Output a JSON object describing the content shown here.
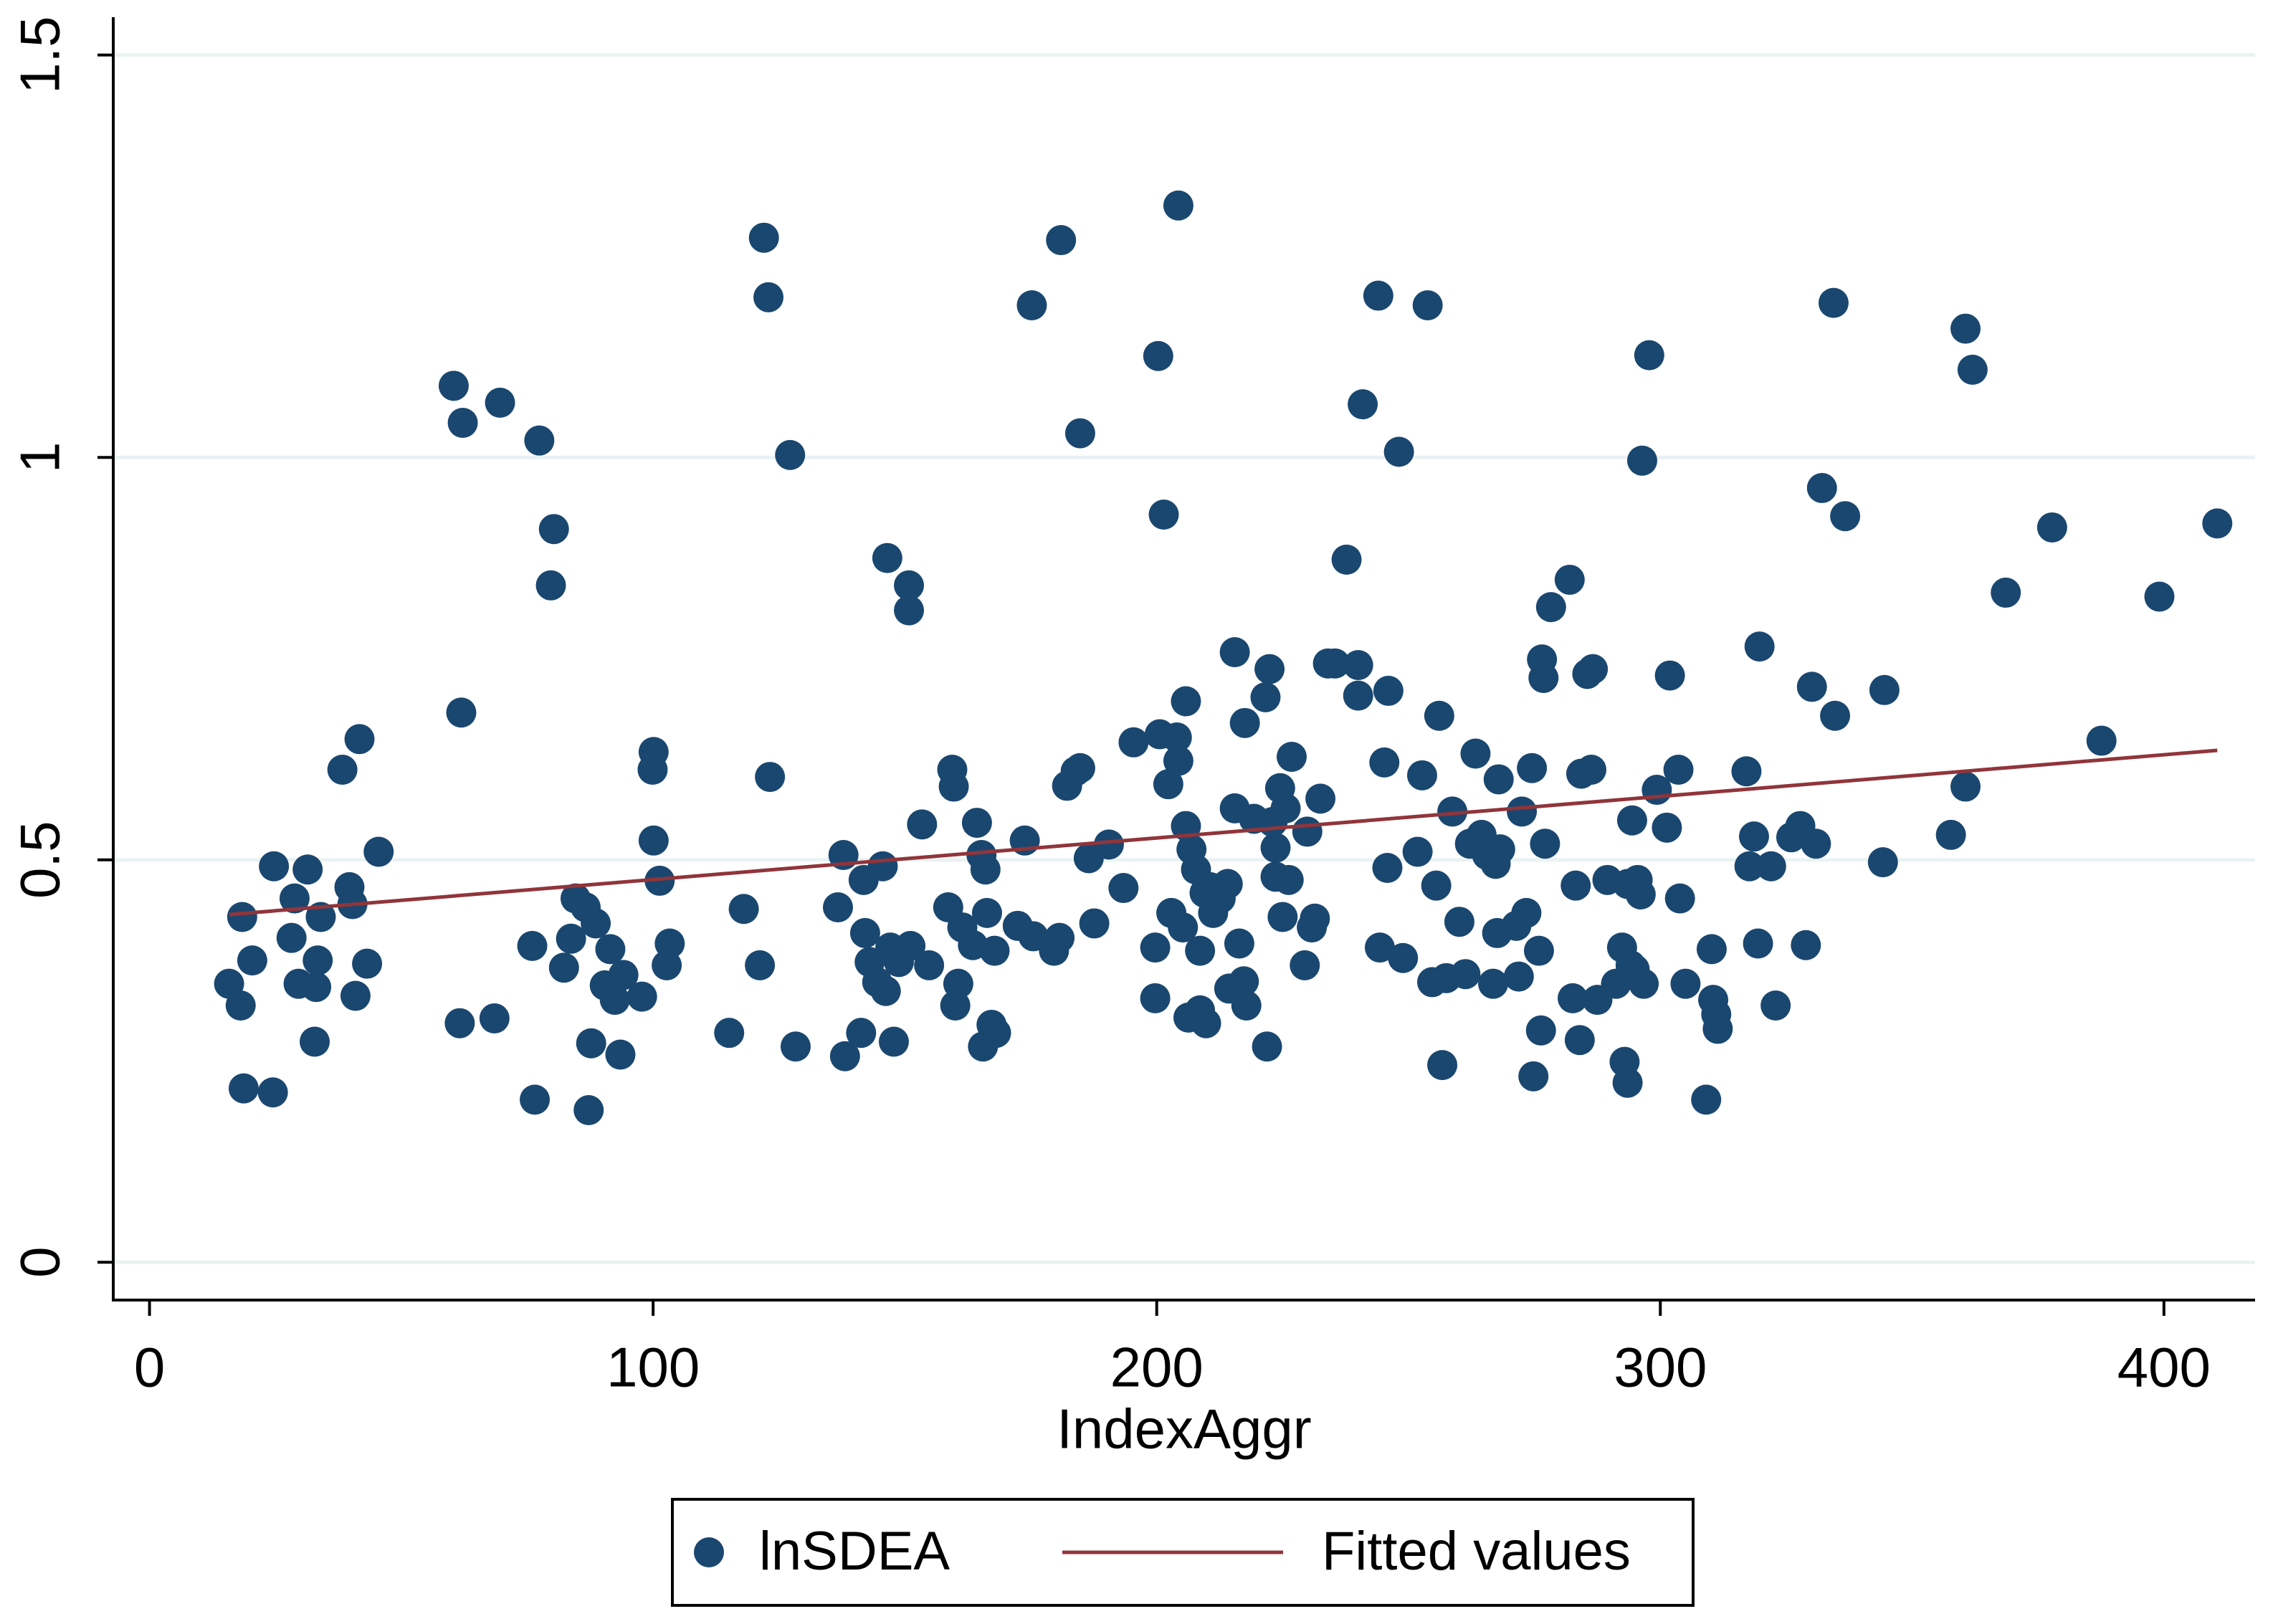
{
  "chart_data": {
    "type": "scatter",
    "x_label": "IndexAggr",
    "xlim": [
      -7.2,
      418.1
    ],
    "ylim": [
      -0.047,
      1.547
    ],
    "xticks": [
      0,
      100,
      200,
      300,
      400
    ],
    "yticks": [
      0,
      0.5,
      1,
      1.5
    ],
    "grid": true,
    "legend": "bottom",
    "series": [
      {
        "name": "lnSDEA",
        "type": "scatter",
        "color": "#1a476f",
        "x": [
          15.8,
          18.1,
          18.4,
          18.7,
          20.4,
          24.5,
          24.7,
          28.2,
          28.8,
          29.6,
          31.4,
          32.8,
          33.1,
          33.4,
          34.0,
          38.3,
          39.7,
          40.3,
          40.9,
          41.7,
          43.2,
          45.5,
          60.4,
          61.6,
          61.9,
          62.2,
          68.5,
          69.6,
          76.0,
          76.5,
          77.4,
          79.7,
          80.3,
          82.3,
          83.7,
          84.6,
          86.6,
          87.2,
          87.7,
          88.6,
          90.4,
          91.5,
          92.4,
          93.5,
          94.1,
          97.8,
          99.9,
          100.1,
          100.1,
          101.3,
          102.7,
          103.3,
          115.1,
          118.0,
          121.2,
          122.0,
          122.9,
          123.2,
          127.2,
          128.3,
          136.7,
          137.8,
          138.1,
          141.3,
          141.8,
          142.1,
          143.0,
          144.5,
          145.6,
          146.2,
          146.5,
          147.1,
          147.8,
          148.8,
          150.8,
          150.8,
          151.1,
          153.4,
          154.8,
          158.6,
          159.4,
          159.7,
          160.0,
          160.6,
          161.4,
          163.5,
          164.3,
          165.2,
          165.5,
          166.0,
          166.3,
          167.2,
          167.8,
          168.1,
          172.4,
          173.8,
          175.2,
          175.5,
          179.6,
          180.7,
          181.0,
          182.2,
          183.9,
          184.8,
          184.8,
          186.5,
          187.6,
          190.5,
          193.4,
          195.4,
          199.7,
          199.7,
          200.3,
          200.6,
          201.4,
          202.3,
          202.9,
          204.0,
          204.3,
          204.3,
          205.2,
          205.8,
          205.8,
          206.3,
          206.9,
          207.8,
          208.6,
          208.6,
          209.5,
          209.8,
          210.6,
          211.2,
          212.7,
          214.1,
          214.4,
          215.5,
          215.5,
          216.4,
          217.3,
          217.5,
          217.8,
          219.3,
          221.6,
          221.9,
          222.4,
          223.0,
          223.6,
          223.6,
          224.5,
          225.0,
          225.6,
          226.2,
          226.8,
          229.4,
          229.9,
          230.8,
          231.4,
          232.5,
          234.0,
          235.4,
          237.7,
          240.0,
          240.0,
          240.9,
          244.0,
          244.3,
          245.2,
          245.8,
          246.0,
          248.1,
          248.9,
          251.8,
          252.7,
          253.8,
          254.7,
          255.5,
          256.1,
          256.7,
          257.5,
          258.7,
          260.1,
          261.3,
          262.2,
          263.3,
          264.5,
          265.6,
          266.8,
          267.3,
          267.6,
          267.9,
          268.2,
          271.4,
          271.9,
          272.5,
          273.4,
          274.5,
          274.8,
          275.9,
          276.3,
          276.5,
          276.8,
          277.1,
          278.3,
          282.0,
          282.6,
          283.2,
          284.0,
          284.3,
          285.5,
          286.3,
          286.6,
          287.5,
          289.5,
          291.2,
          292.4,
          292.9,
          293.5,
          293.5,
          294.1,
          294.4,
          294.9,
          295.5,
          296.1,
          296.4,
          296.7,
          297.8,
          299.3,
          301.3,
          301.9,
          303.6,
          303.9,
          305.0,
          309.1,
          310.2,
          310.5,
          311.1,
          311.4,
          317.1,
          317.7,
          318.6,
          319.4,
          319.7,
          322.0,
          322.9,
          326.0,
          327.8,
          328.9,
          330.1,
          330.9,
          332.1,
          334.4,
          334.7,
          336.7,
          344.2,
          344.5,
          357.7,
          360.6,
          360.6,
          362.0,
          368.6,
          377.8,
          387.6,
          399.1,
          410.6
        ],
        "values": [
          0.346,
          0.319,
          0.429,
          0.216,
          0.375,
          0.211,
          0.492,
          0.403,
          0.452,
          0.346,
          0.488,
          0.274,
          0.342,
          0.375,
          0.429,
          0.612,
          0.466,
          0.445,
          0.331,
          0.65,
          0.371,
          0.51,
          1.089,
          0.297,
          0.683,
          1.043,
          0.303,
          1.068,
          0.393,
          0.202,
          1.021,
          0.841,
          0.911,
          0.366,
          0.402,
          0.452,
          0.441,
          0.189,
          0.272,
          0.421,
          0.344,
          0.389,
          0.326,
          0.258,
          0.357,
          0.33,
          0.612,
          0.634,
          0.524,
          0.474,
          0.369,
          0.396,
          0.285,
          0.439,
          0.369,
          1.273,
          1.199,
          0.603,
          1.003,
          0.268,
          0.441,
          0.506,
          0.256,
          0.285,
          0.475,
          0.409,
          0.373,
          0.348,
          0.492,
          0.337,
          0.875,
          0.391,
          0.274,
          0.373,
          0.841,
          0.81,
          0.393,
          0.544,
          0.369,
          0.441,
          0.612,
          0.591,
          0.319,
          0.346,
          0.416,
          0.394,
          0.546,
          0.506,
          0.268,
          0.488,
          0.434,
          0.295,
          0.387,
          0.285,
          0.418,
          0.524,
          1.189,
          0.405,
          0.387,
          0.403,
          1.27,
          0.592,
          0.61,
          0.614,
          1.03,
          0.502,
          0.421,
          0.519,
          0.465,
          0.646,
          0.391,
          0.328,
          1.126,
          0.656,
          0.929,
          0.594,
          0.434,
          0.652,
          1.313,
          0.623,
          0.416,
          0.697,
          0.542,
          0.304,
          0.513,
          0.488,
          0.387,
          0.313,
          0.459,
          0.297,
          0.466,
          0.434,
          0.452,
          0.47,
          0.34,
          0.758,
          0.564,
          0.396,
          0.349,
          0.67,
          0.319,
          0.551,
          0.702,
          0.268,
          0.737,
          0.547,
          0.515,
          0.479,
          0.589,
          0.429,
          0.564,
          0.475,
          0.628,
          0.369,
          0.535,
          0.416,
          0.427,
          0.576,
          0.744,
          0.744,
          0.873,
          0.742,
          0.704,
          1.066,
          1.201,
          0.391,
          0.621,
          0.49,
          0.71,
          1.007,
          0.378,
          0.51,
          0.605,
          1.189,
          0.348,
          0.468,
          0.679,
          0.245,
          0.353,
          0.56,
          0.423,
          0.358,
          0.52,
          0.632,
          0.531,
          0.506,
          0.346,
          0.495,
          0.409,
          0.6,
          0.513,
          0.418,
          0.355,
          0.56,
          0.434,
          0.614,
          0.231,
          0.387,
          0.288,
          0.749,
          0.726,
          0.52,
          0.814,
          0.848,
          0.328,
          0.468,
          0.276,
          0.607,
          0.731,
          0.612,
          0.737,
          0.326,
          0.475,
          0.346,
          0.391,
          0.249,
          0.47,
          0.223,
          0.369,
          0.549,
          0.364,
          0.475,
          0.457,
          0.996,
          0.346,
          1.127,
          0.587,
          0.54,
          0.729,
          0.612,
          0.452,
          0.346,
          0.202,
          0.389,
          0.326,
          0.308,
          0.29,
          0.61,
          0.492,
          0.529,
          0.396,
          0.765,
          0.492,
          0.319,
          0.528,
          0.542,
          0.394,
          0.715,
          0.52,
          0.962,
          1.192,
          0.679,
          0.927,
          0.497,
          0.711,
          0.531,
          0.591,
          1.16,
          1.109,
          0.832,
          0.913,
          0.648,
          0.827,
          0.918
        ]
      },
      {
        "name": "Fitted values",
        "type": "line",
        "color": "#90353b",
        "x": [
          15.8,
          410.6
        ],
        "values": [
          0.432,
          0.636
        ]
      }
    ]
  }
}
